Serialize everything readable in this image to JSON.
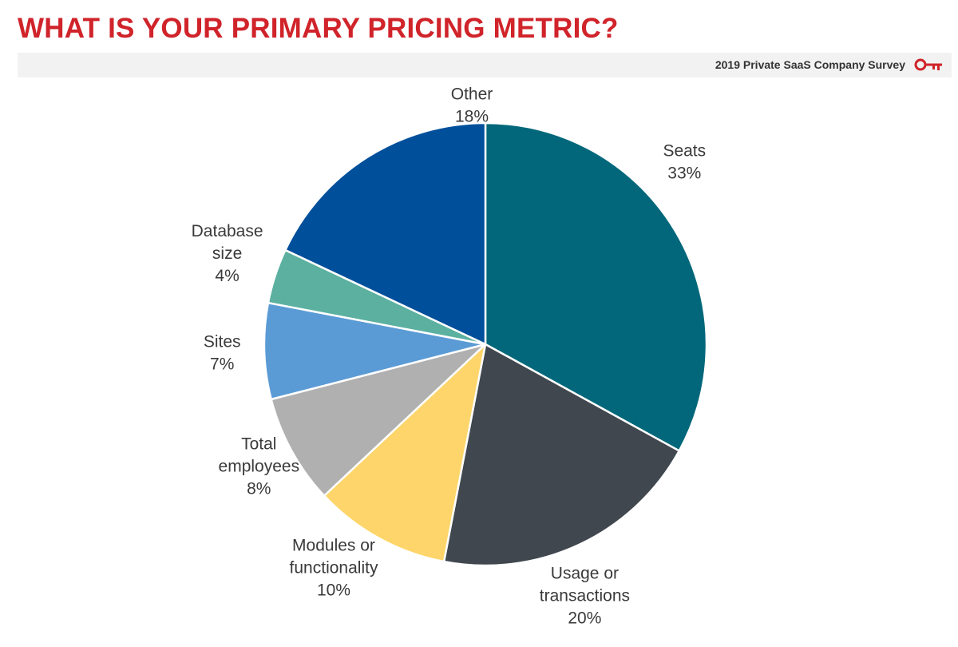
{
  "header": {
    "title": "WHAT IS YOUR PRIMARY PRICING METRIC?",
    "subtitle": "2019 Private SaaS Company Survey",
    "logo_icon": "key-icon",
    "title_color": "#d0232a"
  },
  "chart_data": {
    "type": "pie",
    "title": "WHAT IS YOUR PRIMARY PRICING METRIC?",
    "start": "12 o'clock",
    "direction": "clockwise",
    "slices": [
      {
        "label_lines": [
          "Seats"
        ],
        "value": 33,
        "value_label": "33%",
        "color": "#02677a"
      },
      {
        "label_lines": [
          "Usage or",
          "transactions"
        ],
        "value": 20,
        "value_label": "20%",
        "color": "#41474f"
      },
      {
        "label_lines": [
          "Modules or",
          "functionality"
        ],
        "value": 10,
        "value_label": "10%",
        "color": "#fdd56a"
      },
      {
        "label_lines": [
          "Total",
          "employees"
        ],
        "value": 8,
        "value_label": "8%",
        "color": "#b0b0b0"
      },
      {
        "label_lines": [
          "Sites"
        ],
        "value": 7,
        "value_label": "7%",
        "color": "#5b9bd5"
      },
      {
        "label_lines": [
          "Database",
          "size"
        ],
        "value": 4,
        "value_label": "4%",
        "color": "#5bb0a0"
      },
      {
        "label_lines": [
          "Other"
        ],
        "value": 18,
        "value_label": "18%",
        "color": "#004f9b"
      }
    ]
  }
}
